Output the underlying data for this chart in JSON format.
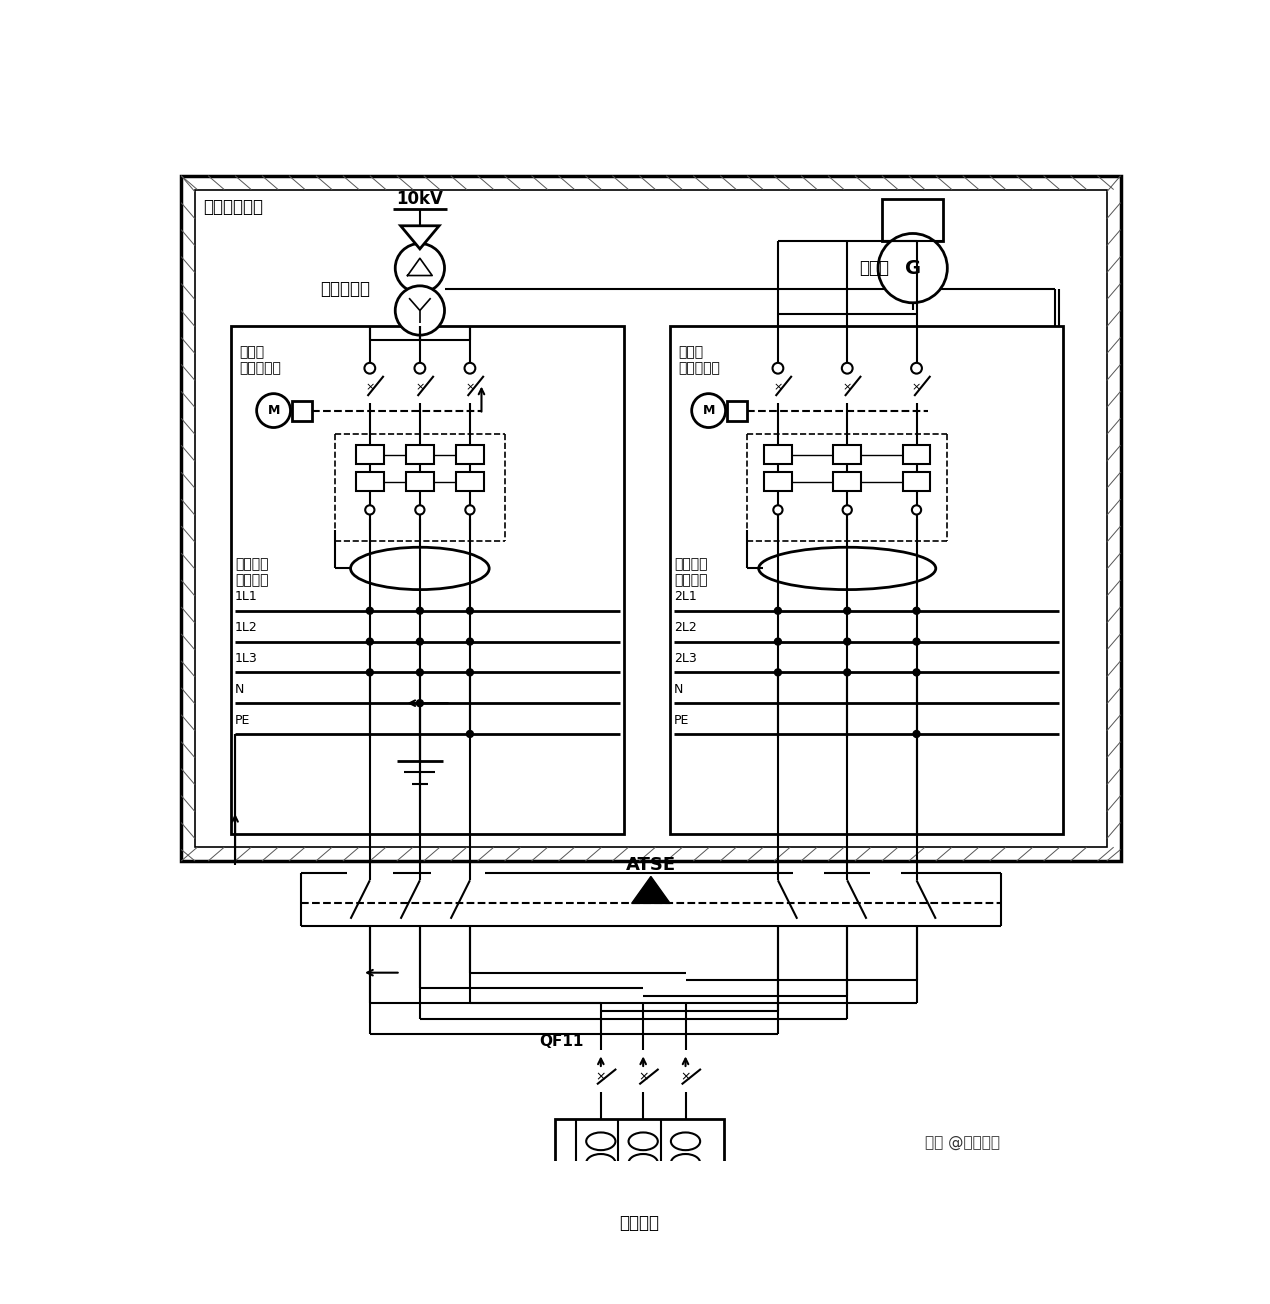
{
  "bg_color": "#ffffff",
  "title_outer": "同一座配电所",
  "label_transformer": "电力变压器",
  "label_generator": "发电机",
  "label_vt_breaker": "变压器\n进线断路器",
  "label_gen_breaker": "发电机\n进线断路器",
  "label_gnd_fault1": "接地故障\n电流检测",
  "label_gnd_fault2": "接地故障\n电流检测",
  "label_1L1": "1L1",
  "label_1L2": "1L2",
  "label_1L3": "1L3",
  "label_N1": "N",
  "label_PE1": "PE",
  "label_2L1": "2L1",
  "label_2L2": "2L2",
  "label_2L3": "2L3",
  "label_N2": "N",
  "label_PE2": "PE",
  "label_atse": "ATSE",
  "label_qf11": "QF11",
  "label_load": "用电设备",
  "label_10kv": "10kV",
  "label_watermark": "头条 @土木智库",
  "figsize": [
    12.7,
    13.04
  ],
  "dpi": 100
}
